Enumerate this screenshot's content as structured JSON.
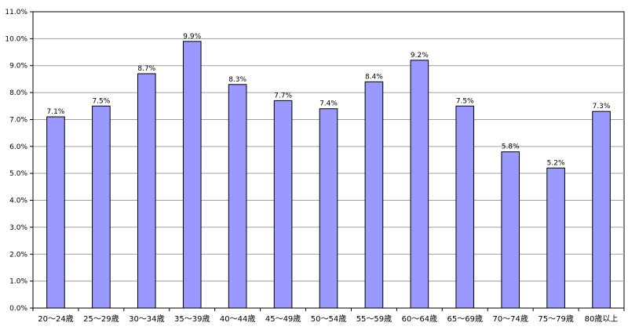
{
  "chart_data": {
    "type": "bar",
    "categories": [
      "20～24歳",
      "25～29歳",
      "30～34歳",
      "35～39歳",
      "40～44歳",
      "45～49歳",
      "50～54歳",
      "55～59歳",
      "60～64歳",
      "65～69歳",
      "70～74歳",
      "75～79歳",
      "80歳以上"
    ],
    "values": [
      7.1,
      7.5,
      8.7,
      9.9,
      8.3,
      7.7,
      7.4,
      8.4,
      9.2,
      7.5,
      5.8,
      5.2,
      7.3
    ],
    "data_labels": [
      "7.1%",
      "7.5%",
      "8.7%",
      "9.9%",
      "8.3%",
      "7.7%",
      "7.4%",
      "8.4%",
      "9.2%",
      "7.5%",
      "5.8%",
      "5.2%",
      "7.3%"
    ],
    "y_ticks": [
      0,
      1,
      2,
      3,
      4,
      5,
      6,
      7,
      8,
      9,
      10,
      11
    ],
    "y_tick_labels": [
      "0.0%",
      "1.0%",
      "2.0%",
      "3.0%",
      "4.0%",
      "5.0%",
      "6.0%",
      "7.0%",
      "8.0%",
      "9.0%",
      "10.0%",
      "11.0%"
    ],
    "ylim": [
      0,
      11
    ],
    "grid": true,
    "title": "",
    "xlabel": "",
    "ylabel": "",
    "colors": {
      "bar_fill": "#9999ff",
      "bar_stroke": "#000000",
      "grid": "#a0a0a0",
      "axis": "#000000"
    }
  }
}
